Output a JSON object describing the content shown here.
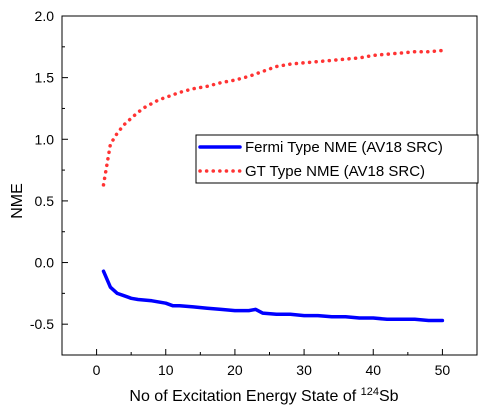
{
  "chart_data": {
    "type": "line",
    "title": "",
    "xlabel": "No of Excitation Energy State of ",
    "xlabel_sup": "124",
    "xlabel_tail": "Sb",
    "ylabel": "NME",
    "xlim": [
      -5,
      55
    ],
    "ylim": [
      -0.75,
      2.0
    ],
    "xticks": [
      0,
      10,
      20,
      30,
      40,
      50
    ],
    "xtick_labels": [
      "0",
      "10",
      "20",
      "30",
      "40",
      "50"
    ],
    "yticks": [
      -0.5,
      0.0,
      0.5,
      1.0,
      1.5,
      2.0
    ],
    "ytick_labels": [
      "-0.5",
      "0.0",
      "0.5",
      "1.0",
      "1.5",
      "2.0"
    ],
    "grid": false,
    "legend_position": "right",
    "series": [
      {
        "name": "Fermi Type NME (AV18 SRC)",
        "color": "#0000ff",
        "style": "solid",
        "x": [
          1,
          2,
          3,
          4,
          5,
          6,
          8,
          10,
          11,
          12,
          14,
          16,
          18,
          20,
          22,
          23,
          24,
          26,
          28,
          30,
          32,
          34,
          36,
          38,
          40,
          42,
          44,
          46,
          48,
          50
        ],
        "y": [
          -0.07,
          -0.2,
          -0.25,
          -0.27,
          -0.29,
          -0.3,
          -0.31,
          -0.33,
          -0.35,
          -0.35,
          -0.36,
          -0.37,
          -0.38,
          -0.39,
          -0.39,
          -0.38,
          -0.41,
          -0.42,
          -0.42,
          -0.43,
          -0.43,
          -0.44,
          -0.44,
          -0.45,
          -0.45,
          -0.46,
          -0.46,
          -0.46,
          -0.47,
          -0.47
        ]
      },
      {
        "name": "GT Type NME (AV18 SRC)",
        "color": "#ff3333",
        "style": "dotted",
        "x": [
          1,
          2,
          3,
          4,
          5,
          6,
          7,
          8,
          9,
          10,
          12,
          14,
          16,
          18,
          20,
          22,
          24,
          26,
          28,
          30,
          32,
          34,
          36,
          38,
          40,
          42,
          44,
          46,
          48,
          50
        ],
        "y": [
          0.63,
          0.96,
          1.05,
          1.12,
          1.17,
          1.22,
          1.26,
          1.29,
          1.32,
          1.34,
          1.38,
          1.41,
          1.43,
          1.46,
          1.48,
          1.51,
          1.55,
          1.59,
          1.61,
          1.62,
          1.63,
          1.64,
          1.65,
          1.66,
          1.68,
          1.69,
          1.7,
          1.71,
          1.71,
          1.72
        ]
      }
    ]
  }
}
